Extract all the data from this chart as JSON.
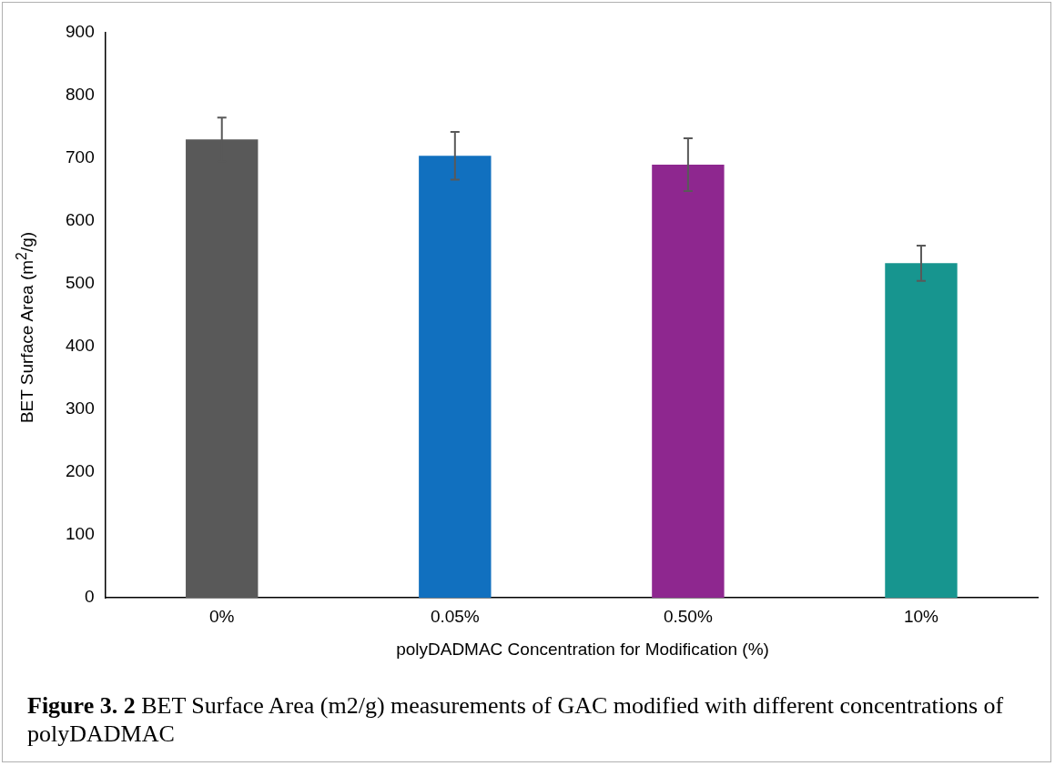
{
  "chart_data": {
    "type": "bar",
    "xlabel": "polyDADMAC Concentration for Modification (%)",
    "ylabel": "BET Surface Area (m$^{2}$/g)",
    "categories": [
      "0%",
      "0.05%",
      "0.50%",
      "10%"
    ],
    "values": [
      730,
      704,
      690,
      533
    ],
    "colors": [
      "#595959",
      "#1170bf",
      "#8e278f",
      "#17958f"
    ],
    "errors": [
      35,
      38,
      42,
      28
    ],
    "ylim": [
      0,
      900
    ],
    "yticks": [
      0,
      100,
      200,
      300,
      400,
      500,
      600,
      700,
      800,
      900
    ],
    "grid": false,
    "legend": false,
    "annotations": [
      "Figure 3. 2",
      "BET Surface Area (m2/g) measurements of GAC modified with different concentrations of polyDADMAC"
    ]
  }
}
